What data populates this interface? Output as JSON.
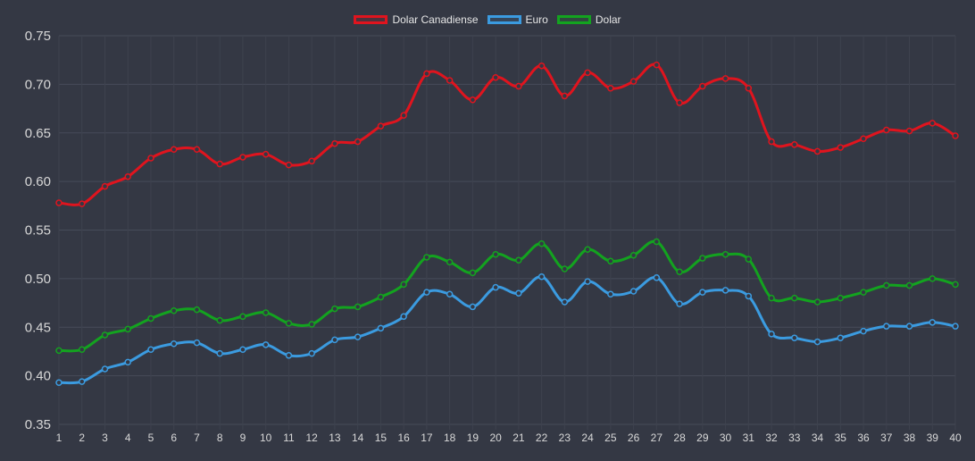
{
  "chart_data": {
    "type": "line",
    "title": "",
    "xlabel": "",
    "ylabel": "",
    "ylim": [
      0.35,
      0.75
    ],
    "yticks": [
      "0.75",
      "0.70",
      "0.65",
      "0.60",
      "0.55",
      "0.50",
      "0.45",
      "0.40",
      "0.35"
    ],
    "categories": [
      "1",
      "2",
      "3",
      "4",
      "5",
      "6",
      "7",
      "8",
      "9",
      "10",
      "11",
      "12",
      "13",
      "14",
      "15",
      "16",
      "17",
      "18",
      "19",
      "20",
      "21",
      "22",
      "23",
      "24",
      "25",
      "26",
      "27",
      "28",
      "29",
      "30",
      "31",
      "32",
      "33",
      "34",
      "35",
      "36",
      "37",
      "38",
      "39",
      "40"
    ],
    "grid": true,
    "legend_position": "top-center",
    "series": [
      {
        "name": "Dolar Canadiense",
        "color": "#e0141e",
        "values": [
          0.578,
          0.577,
          0.595,
          0.605,
          0.624,
          0.633,
          0.633,
          0.618,
          0.625,
          0.628,
          0.617,
          0.621,
          0.639,
          0.641,
          0.657,
          0.668,
          0.711,
          0.704,
          0.684,
          0.707,
          0.698,
          0.719,
          0.688,
          0.712,
          0.696,
          0.703,
          0.72,
          0.681,
          0.698,
          0.706,
          0.696,
          0.641,
          0.638,
          0.631,
          0.635,
          0.644,
          0.653,
          0.652,
          0.66,
          0.647
        ]
      },
      {
        "name": "Euro",
        "color": "#3b9be0",
        "values": [
          0.393,
          0.394,
          0.407,
          0.414,
          0.427,
          0.433,
          0.434,
          0.423,
          0.427,
          0.432,
          0.421,
          0.423,
          0.437,
          0.44,
          0.449,
          0.461,
          0.486,
          0.484,
          0.471,
          0.491,
          0.485,
          0.502,
          0.476,
          0.497,
          0.484,
          0.487,
          0.501,
          0.474,
          0.486,
          0.488,
          0.482,
          0.443,
          0.439,
          0.435,
          0.439,
          0.446,
          0.451,
          0.451,
          0.455,
          0.451
        ]
      },
      {
        "name": "Dolar",
        "color": "#13a31f",
        "values": [
          0.426,
          0.427,
          0.442,
          0.448,
          0.459,
          0.467,
          0.468,
          0.457,
          0.461,
          0.465,
          0.454,
          0.453,
          0.469,
          0.471,
          0.481,
          0.494,
          0.522,
          0.517,
          0.506,
          0.525,
          0.519,
          0.536,
          0.51,
          0.53,
          0.518,
          0.524,
          0.538,
          0.507,
          0.521,
          0.525,
          0.52,
          0.48,
          0.48,
          0.476,
          0.48,
          0.486,
          0.493,
          0.493,
          0.5,
          0.494
        ]
      }
    ]
  }
}
